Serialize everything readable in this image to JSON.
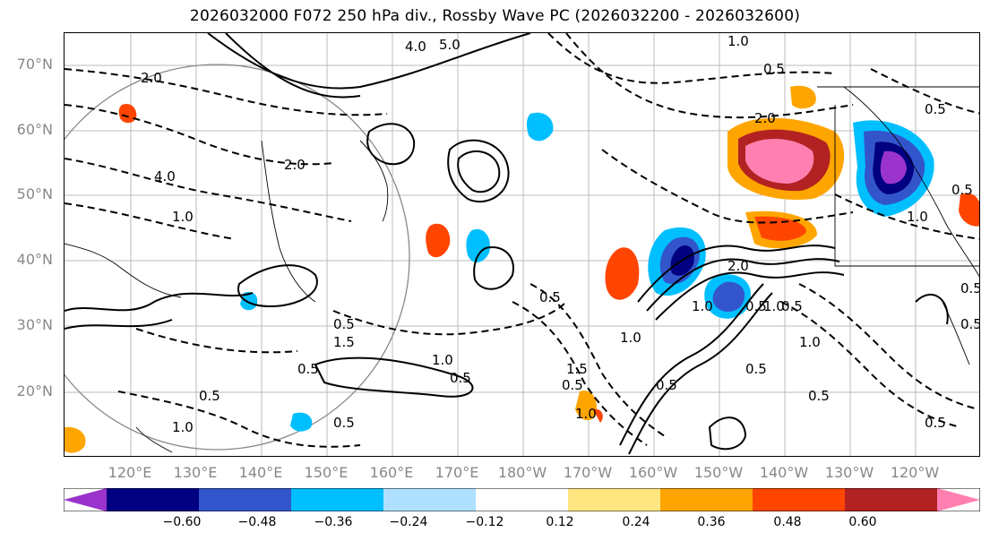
{
  "title": "2026032000 F072 250 hPa div., Rossby Wave PC (2026032200 - 2026032600)",
  "lat_labels": [
    "70°N",
    "60°N",
    "50°N",
    "40°N",
    "30°N",
    "20°N"
  ],
  "lon_labels": [
    "120°E",
    "130°E",
    "140°E",
    "150°E",
    "160°E",
    "170°E",
    "180°W",
    "170°W",
    "160°W",
    "150°W",
    "140°W",
    "130°W",
    "120°W"
  ],
  "colorbar": {
    "ticks": [
      "−0.60",
      "−0.48",
      "−0.36",
      "−0.24",
      "−0.12",
      "0.12",
      "0.24",
      "0.36",
      "0.48",
      "0.60"
    ],
    "colors": [
      "#9933cc",
      "#000080",
      "#3355cc",
      "#00bfff",
      "#b0e0ff",
      "#ffffff",
      "#ffe680",
      "#ffa500",
      "#ff4500",
      "#b22222",
      "#ff80b0"
    ]
  },
  "contour_labels": [
    "2.0",
    "4.0",
    "5.0",
    "1.0",
    "0.5",
    "2.0",
    "4.0",
    "1.0",
    "0.5",
    "0.5",
    "0.5",
    "1.0",
    "1.5",
    "0.5",
    "1.0",
    "1.5",
    "0.5",
    "1.0",
    "0.5",
    "1.0",
    "2.0",
    "0.5",
    "1.0",
    "0.5",
    "1.0",
    "0.5",
    "0.5",
    "1.0",
    "2.0",
    "0.5",
    "0.5",
    "0.5",
    "0.5",
    "0.5",
    "0.5",
    "1.0",
    "0.5"
  ]
}
